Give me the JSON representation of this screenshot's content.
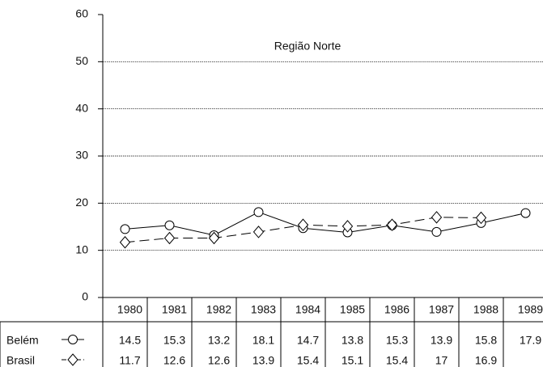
{
  "chart_data": {
    "type": "line",
    "title": "Região Norte",
    "categories": [
      "1980",
      "1981",
      "1982",
      "1983",
      "1984",
      "1985",
      "1986",
      "1987",
      "1988",
      "1989"
    ],
    "series": [
      {
        "name": "Belém",
        "color": "#000000",
        "dash": "solid",
        "marker": "circle",
        "values": [
          14.5,
          15.3,
          13.2,
          18.1,
          14.7,
          13.8,
          15.3,
          13.9,
          15.8,
          17.9
        ]
      },
      {
        "name": "Brasil",
        "color": "#000000",
        "dash": "dashed",
        "marker": "diamond",
        "values": [
          11.7,
          12.6,
          12.6,
          13.9,
          15.4,
          15.1,
          15.4,
          17,
          16.9,
          null
        ]
      }
    ],
    "ylim": [
      0,
      60
    ],
    "yticks": [
      0,
      10,
      20,
      30,
      40,
      50,
      60
    ],
    "grid": true
  }
}
